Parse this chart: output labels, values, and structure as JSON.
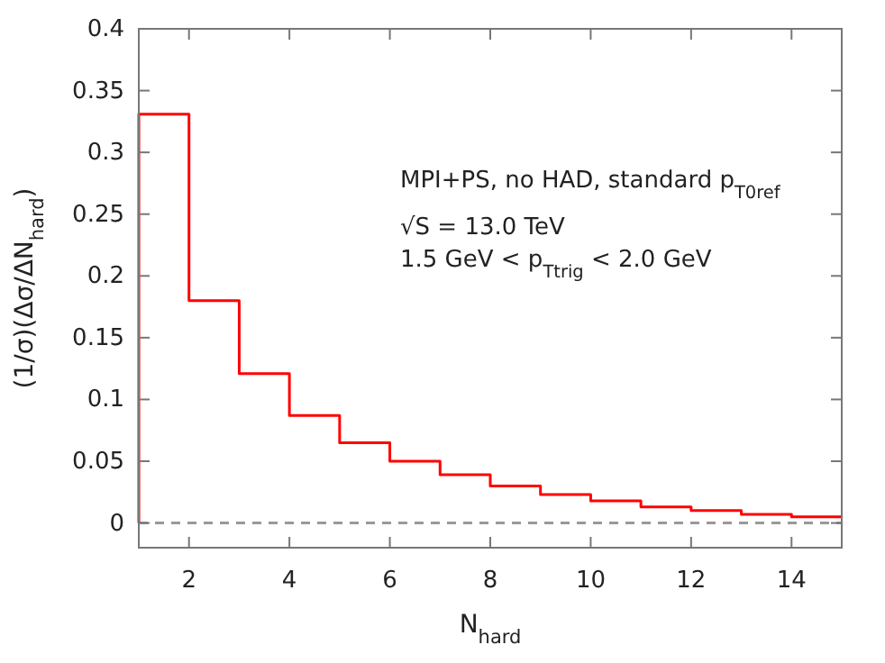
{
  "chart_data": {
    "type": "histogram",
    "xlabel": "N$_{hard}$",
    "ylabel": "(1/σ)(Δσ/ΔN$_{hard}$)",
    "bins": [
      1,
      2,
      3,
      4,
      5,
      6,
      7,
      8,
      9,
      10,
      11,
      12,
      13,
      14,
      15
    ],
    "values": [
      0.331,
      0.18,
      0.121,
      0.087,
      0.065,
      0.05,
      0.039,
      0.03,
      0.023,
      0.018,
      0.013,
      0.01,
      0.007,
      0.005
    ],
    "color": "#ff0000",
    "xlim": [
      1,
      15
    ],
    "xticks": [
      2,
      4,
      6,
      8,
      10,
      12,
      14
    ],
    "ylim": [
      -0.02,
      0.4
    ],
    "yticks": [
      0,
      0.05,
      0.1,
      0.15,
      0.2,
      0.25,
      0.3,
      0.35,
      0.4
    ],
    "ref_lines": [
      {
        "axis": "y",
        "value": 0,
        "color": "#999999",
        "line_style": "dashed"
      }
    ],
    "annotations": [
      "MPI+PS, no HAD, standard p$_{T0ref}$",
      "√S = 13.0 TeV",
      "1.5 GeV < p$_{Ttrig}$ < 2.0 GeV"
    ],
    "grid": false
  }
}
